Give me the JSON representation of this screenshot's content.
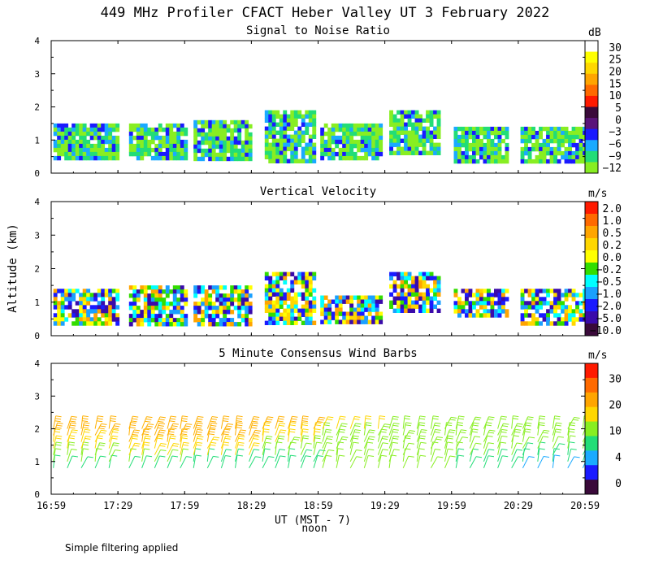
{
  "title": "449 MHz Profiler CFACT Heber Valley UT  3 February 2022",
  "ylabel": "Altitude (km)",
  "xlabel": "UT  (MST - 7)",
  "x_sublabel": "noon",
  "footnote": "Simple filtering applied",
  "x_ticks": [
    "16:59",
    "17:29",
    "17:59",
    "18:29",
    "18:59",
    "19:29",
    "19:59",
    "20:29",
    "20:59"
  ],
  "y_ticks": [
    "0",
    "1",
    "2",
    "3",
    "4"
  ],
  "panels": [
    {
      "title": "Signal to Noise Ratio",
      "colorbar_unit": "dB",
      "colorbar_labels": [
        "30",
        "25",
        "20",
        "15",
        "10",
        "5",
        "0",
        "−3",
        "−6",
        "−9",
        "−12"
      ],
      "colorbar_colors": [
        "#ffffff",
        "#ffff00",
        "#ffd700",
        "#ffa500",
        "#ff6a00",
        "#ff1a00",
        "#3a0a3a",
        "#5a147a",
        "#1a1aff",
        "#1aaaff",
        "#22dd77",
        "#88ee22"
      ]
    },
    {
      "title": "Vertical Velocity",
      "colorbar_unit": "m/s",
      "colorbar_labels": [
        "2.0",
        "1.0",
        "0.5",
        "0.2",
        "0.0",
        "−0.2",
        "−0.5",
        "−1.0",
        "−2.0",
        "−5.0",
        "−10.0"
      ],
      "colorbar_colors": [
        "#ff1a00",
        "#ff6a00",
        "#ffa500",
        "#ffd700",
        "#ffff00",
        "#33dd00",
        "#00ffff",
        "#1aa0ff",
        "#1a1aff",
        "#3a0aaa",
        "#3a0a3a"
      ]
    },
    {
      "title": "5 Minute Consensus Wind Barbs",
      "colorbar_unit": "m/s",
      "colorbar_labels": [
        "30",
        "20",
        "10",
        "4",
        "0"
      ],
      "colorbar_colors": [
        "#ff1a00",
        "#ff6a00",
        "#ffa500",
        "#ffd700",
        "#88ee22",
        "#22dd77",
        "#1aaaff",
        "#1a1aff",
        "#3a0a3a"
      ]
    }
  ],
  "chart_data": [
    {
      "type": "heatmap",
      "title": "Signal to Noise Ratio",
      "xlabel": "UT  (MST - 7)",
      "ylabel": "Altitude (km)",
      "x_range": [
        "16:59",
        "20:59"
      ],
      "ylim": [
        0,
        4
      ],
      "colorbar_unit": "dB",
      "data_blocks": [
        {
          "t_start": "17:00",
          "t_end": "17:29",
          "alt_range_km": [
            0.4,
            1.5
          ],
          "dominant": "-12 to -9 dB"
        },
        {
          "t_start": "17:34",
          "t_end": "17:59",
          "alt_range_km": [
            0.4,
            1.5
          ],
          "dominant": "-12 to -6 dB"
        },
        {
          "t_start": "18:03",
          "t_end": "18:29",
          "alt_range_km": [
            0.4,
            1.6
          ],
          "dominant": "-12 to -6 dB"
        },
        {
          "t_start": "18:35",
          "t_end": "18:58",
          "alt_range_km": [
            0.4,
            1.9
          ],
          "dominant": "-12 to -6 dB"
        },
        {
          "t_start": "19:00",
          "t_end": "19:27",
          "alt_range_km": [
            0.4,
            1.5
          ],
          "dominant": "-12 dB"
        },
        {
          "t_start": "19:31",
          "t_end": "19:53",
          "alt_range_km": [
            0.6,
            1.9
          ],
          "dominant": "-12 to -9 dB"
        },
        {
          "t_start": "20:00",
          "t_end": "20:24",
          "alt_range_km": [
            0.4,
            1.4
          ],
          "dominant": "-12 to -6 dB"
        },
        {
          "t_start": "20:30",
          "t_end": "20:58",
          "alt_range_km": [
            0.4,
            1.4
          ],
          "dominant": "-9 to -3 dB"
        }
      ]
    },
    {
      "type": "heatmap",
      "title": "Vertical Velocity",
      "xlabel": "UT  (MST - 7)",
      "ylabel": "Altitude (km)",
      "x_range": [
        "16:59",
        "20:59"
      ],
      "ylim": [
        0,
        4
      ],
      "colorbar_unit": "m/s",
      "data_blocks": [
        {
          "t_start": "17:00",
          "t_end": "17:29",
          "alt_range_km": [
            0.4,
            1.4
          ],
          "dominant": "-0.5 to -2.0 m/s"
        },
        {
          "t_start": "17:34",
          "t_end": "17:59",
          "alt_range_km": [
            0.4,
            1.5
          ],
          "dominant": "-1.0 to -5.0 m/s"
        },
        {
          "t_start": "18:03",
          "t_end": "18:29",
          "alt_range_km": [
            0.4,
            1.5
          ],
          "dominant": "0.2 to -0.5 m/s"
        },
        {
          "t_start": "18:35",
          "t_end": "18:58",
          "alt_range_km": [
            0.4,
            1.9
          ],
          "dominant": "-0.5 to -2.0 m/s"
        },
        {
          "t_start": "19:00",
          "t_end": "19:27",
          "alt_range_km": [
            0.4,
            1.2
          ],
          "dominant": "-0.5 to -2.0 m/s"
        },
        {
          "t_start": "19:31",
          "t_end": "19:53",
          "alt_range_km": [
            0.7,
            1.9
          ],
          "dominant": "-0.5 to -2.0 m/s"
        },
        {
          "t_start": "20:00",
          "t_end": "20:24",
          "alt_range_km": [
            0.6,
            1.4
          ],
          "dominant": "0.0 to -0.5 m/s"
        },
        {
          "t_start": "20:30",
          "t_end": "20:58",
          "alt_range_km": [
            0.4,
            1.4
          ],
          "dominant": "-1.0 to -2.0 m/s"
        }
      ]
    },
    {
      "type": "scatter",
      "title": "5 Minute Consensus Wind Barbs",
      "xlabel": "UT  (MST - 7)",
      "ylabel": "Altitude (km)",
      "x_range": [
        "16:59",
        "20:59"
      ],
      "ylim": [
        0,
        4
      ],
      "colorbar_unit": "m/s",
      "barb_altitudes_km": [
        0.8,
        1.0,
        1.2,
        1.4,
        1.6,
        1.8,
        2.0
      ],
      "barb_groups": [
        {
          "t_start": "17:00",
          "t_end": "17:25",
          "speed_by_altitude_ms": [
            8,
            10,
            12,
            15,
            18,
            20,
            22
          ]
        },
        {
          "t_start": "17:34",
          "t_end": "17:57",
          "speed_by_altitude_ms": [
            6,
            10,
            16,
            18,
            20,
            22,
            24
          ]
        },
        {
          "t_start": "18:03",
          "t_end": "18:28",
          "speed_by_altitude_ms": [
            6,
            8,
            14,
            18,
            20,
            22,
            24
          ]
        },
        {
          "t_start": "18:34",
          "t_end": "18:57",
          "speed_by_altitude_ms": [
            6,
            8,
            10,
            12,
            14,
            16,
            20
          ]
        },
        {
          "t_start": "19:01",
          "t_end": "19:26",
          "speed_by_altitude_ms": [
            10,
            10,
            10,
            12,
            12,
            12,
            14
          ]
        },
        {
          "t_start": "19:31",
          "t_end": "19:56",
          "speed_by_altitude_ms": [
            10,
            10,
            10,
            12,
            12,
            12,
            12
          ]
        },
        {
          "t_start": "20:01",
          "t_end": "20:26",
          "speed_by_altitude_ms": [
            8,
            8,
            10,
            10,
            12,
            12,
            12
          ]
        },
        {
          "t_start": "20:31",
          "t_end": "20:58",
          "speed_by_altitude_ms": [
            4,
            6,
            8,
            10,
            12,
            12,
            12
          ]
        }
      ]
    }
  ]
}
